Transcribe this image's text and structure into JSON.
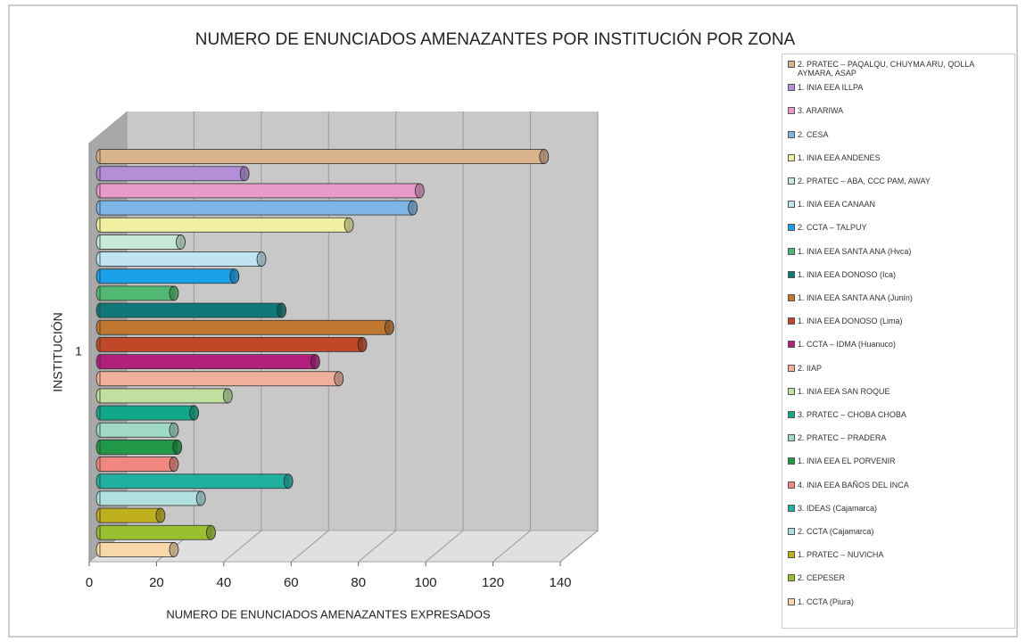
{
  "chart_data": {
    "type": "bar3d-horizontal",
    "title": "NUMERO DE ENUNCIADOS AMENAZANTES POR INSTITUCIÓN POR ZONA",
    "x_label": "NUMERO DE ENUNCIADOS AMENAZANTES EXPRESADOS",
    "y_label": "INSTITUCIÓN",
    "categories": [
      "1"
    ],
    "xlim": [
      0,
      140
    ],
    "xticks": [
      0,
      20,
      40,
      60,
      80,
      100,
      120,
      140
    ],
    "grid": true,
    "legend": "right",
    "series": [
      {
        "name": "2. PRATEC – PAQALQU, CHUYMA ARU, QOLLA AYMARA, ASAP",
        "color": "#d9b38c",
        "values": [
          132
        ]
      },
      {
        "name": "1. INIA EEA ILLPA",
        "color": "#b48ed6",
        "values": [
          43
        ]
      },
      {
        "name": "3. ARARIWA",
        "color": "#e89ac8",
        "values": [
          95
        ]
      },
      {
        "name": "2. CESA",
        "color": "#7fb6e8",
        "values": [
          93
        ]
      },
      {
        "name": "1. INIA EEA ANDENES",
        "color": "#f0f0a0",
        "values": [
          74
        ]
      },
      {
        "name": "2. PRATEC – ABA, CCC PAM, AWAY",
        "color": "#c8e8d8",
        "values": [
          24
        ]
      },
      {
        "name": "1. INIA EEA CANAAN",
        "color": "#c0e4f4",
        "values": [
          48
        ]
      },
      {
        "name": "2. CCTA – TALPUY",
        "color": "#1aa0e8",
        "values": [
          40
        ]
      },
      {
        "name": "1. INIA EEA SANTA ANA (Hvca)",
        "color": "#50b870",
        "values": [
          22
        ]
      },
      {
        "name": "1. INIA EEA DONOSO (Ica)",
        "color": "#107878",
        "values": [
          54
        ]
      },
      {
        "name": "1. INIA EEA SANTA ANA (Junín)",
        "color": "#c07830",
        "values": [
          86
        ]
      },
      {
        "name": "1. INIA EEA DONOSO (Lima)",
        "color": "#c04828",
        "values": [
          78
        ]
      },
      {
        "name": "1. CCTA – IDMA (Huanuco)",
        "color": "#b0207c",
        "values": [
          64
        ]
      },
      {
        "name": "2. IIAP",
        "color": "#f0b09c",
        "values": [
          71
        ]
      },
      {
        "name": "1. INIA EEA SAN ROQUE",
        "color": "#c0e0a0",
        "values": [
          38
        ]
      },
      {
        "name": "3. PRATEC – CHOBA CHOBA",
        "color": "#10a888",
        "values": [
          28
        ]
      },
      {
        "name": "2. PRATEC – PRADERA",
        "color": "#a0d8c8",
        "values": [
          22
        ]
      },
      {
        "name": "1. INIA EEA EL PORVENIR",
        "color": "#209848",
        "values": [
          23
        ]
      },
      {
        "name": "4. INIA EEA BAÑOS DEL INCA",
        "color": "#f08880",
        "values": [
          22
        ]
      },
      {
        "name": "3. IDEAS (Cajamarca)",
        "color": "#20b0a0",
        "values": [
          56
        ]
      },
      {
        "name": "2. CCTA (Cajamarca)",
        "color": "#b0e0e0",
        "values": [
          30
        ]
      },
      {
        "name": "1. PRATEC – NUVICHA",
        "color": "#c0b020",
        "values": [
          18
        ]
      },
      {
        "name": "2. CEPESER",
        "color": "#98c030",
        "values": [
          33
        ]
      },
      {
        "name": "1. CCTA (Piura)",
        "color": "#f8d8a8",
        "values": [
          22
        ]
      }
    ]
  }
}
